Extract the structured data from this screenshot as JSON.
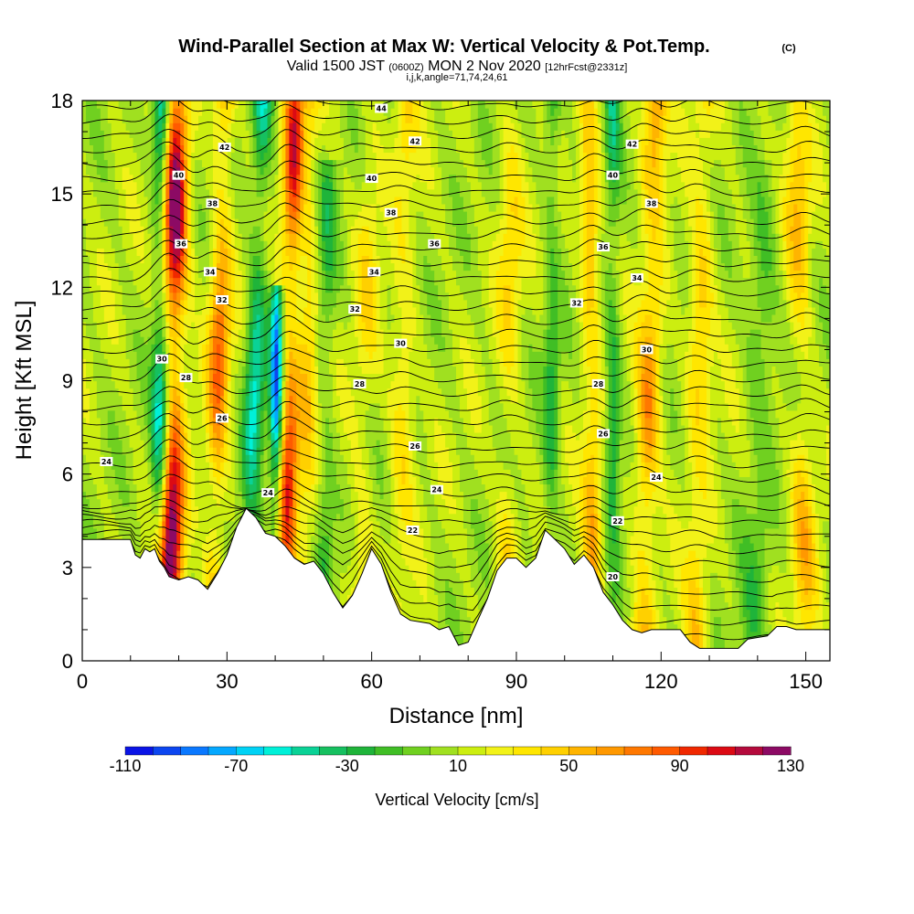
{
  "chart_data": {
    "type": "heatmap",
    "title": "Wind-Parallel Section at Max W: Vertical Velocity & Pot.Temp.",
    "title_mark": "(C)",
    "subtitle_parts": [
      "Valid 1500 JST",
      "(0600Z)",
      "MON 2 Nov 2020",
      "[12hrFcst@2331z]"
    ],
    "subtitle2": "i,j,k,angle=71,74,24,61",
    "xlabel": "Distance [nm]",
    "ylabel": "Height [Kft MSL]",
    "xlim": [
      0,
      155
    ],
    "ylim": [
      0,
      18
    ],
    "x_ticks": [
      "0",
      "30",
      "60",
      "90",
      "120",
      "150"
    ],
    "y_ticks": [
      "0",
      "3",
      "6",
      "9",
      "12",
      "15",
      "18"
    ],
    "colorbar": {
      "label": "Vertical Velocity [cm/s]",
      "range": [
        -110,
        130
      ],
      "step": 10,
      "tick_labels": [
        "-110",
        "-70",
        "-30",
        "10",
        "50",
        "90",
        "130"
      ],
      "colors": [
        "#0a14e6",
        "#0c46f0",
        "#0a78ff",
        "#05a8ff",
        "#00d2f5",
        "#00f0d8",
        "#0ad296",
        "#16c060",
        "#1fb43a",
        "#40be25",
        "#70d020",
        "#a0e020",
        "#ccee10",
        "#f2f218",
        "#ffe600",
        "#ffd000",
        "#ffb400",
        "#ff9800",
        "#ff7800",
        "#ff5a00",
        "#f02800",
        "#dc0a14",
        "#b40a3c",
        "#8c0a64"
      ]
    },
    "contour_field": "Pot.Temp.",
    "contour_labels": [
      {
        "text": "44",
        "x": 62,
        "y": 17.75
      },
      {
        "text": "42",
        "x": 29.5,
        "y": 16.5
      },
      {
        "text": "42",
        "x": 69,
        "y": 16.7
      },
      {
        "text": "42",
        "x": 114,
        "y": 16.6
      },
      {
        "text": "40",
        "x": 20,
        "y": 15.6
      },
      {
        "text": "40",
        "x": 60,
        "y": 15.5
      },
      {
        "text": "40",
        "x": 110,
        "y": 15.6
      },
      {
        "text": "38",
        "x": 27,
        "y": 14.7
      },
      {
        "text": "38",
        "x": 64,
        "y": 14.4
      },
      {
        "text": "38",
        "x": 118,
        "y": 14.7
      },
      {
        "text": "36",
        "x": 20.5,
        "y": 13.4
      },
      {
        "text": "36",
        "x": 73,
        "y": 13.4
      },
      {
        "text": "36",
        "x": 108,
        "y": 13.3
      },
      {
        "text": "34",
        "x": 26.5,
        "y": 12.5
      },
      {
        "text": "34",
        "x": 60.5,
        "y": 12.5
      },
      {
        "text": "34",
        "x": 115,
        "y": 12.3
      },
      {
        "text": "32",
        "x": 29,
        "y": 11.6
      },
      {
        "text": "32",
        "x": 56.5,
        "y": 11.3
      },
      {
        "text": "32",
        "x": 102.5,
        "y": 11.5
      },
      {
        "text": "30",
        "x": 16.5,
        "y": 9.7
      },
      {
        "text": "30",
        "x": 66,
        "y": 10.2
      },
      {
        "text": "30",
        "x": 117,
        "y": 10.0
      },
      {
        "text": "28",
        "x": 21.5,
        "y": 9.1
      },
      {
        "text": "28",
        "x": 57.5,
        "y": 8.9
      },
      {
        "text": "28",
        "x": 107,
        "y": 8.9
      },
      {
        "text": "26",
        "x": 29,
        "y": 7.8
      },
      {
        "text": "26",
        "x": 69,
        "y": 6.9
      },
      {
        "text": "26",
        "x": 108,
        "y": 7.3
      },
      {
        "text": "24",
        "x": 5,
        "y": 6.4
      },
      {
        "text": "24",
        "x": 38.5,
        "y": 5.4
      },
      {
        "text": "24",
        "x": 73.5,
        "y": 5.5
      },
      {
        "text": "24",
        "x": 119,
        "y": 5.9
      },
      {
        "text": "22",
        "x": 68.5,
        "y": 4.2
      },
      {
        "text": "22",
        "x": 111,
        "y": 4.5
      },
      {
        "text": "20",
        "x": 110,
        "y": 2.7
      }
    ],
    "updraft_columns": [
      {
        "x": 18,
        "w": 2.6,
        "amp": 130,
        "top": 18,
        "tilt": 1.5
      },
      {
        "x": 27,
        "w": 2.2,
        "amp": 70,
        "top": 18,
        "tilt": 2.5
      },
      {
        "x": 42,
        "w": 2.0,
        "amp": 90,
        "top": 18,
        "tilt": 2.0
      },
      {
        "x": 46,
        "w": 2.2,
        "amp": 40,
        "top": 18,
        "tilt": 1.5
      },
      {
        "x": 57,
        "w": 2.5,
        "amp": 25,
        "top": 18,
        "tilt": 3.0
      },
      {
        "x": 66,
        "w": 2.5,
        "amp": 30,
        "top": 18,
        "tilt": 1.0
      },
      {
        "x": 88,
        "w": 2.5,
        "amp": 30,
        "top": 18,
        "tilt": 1.0
      },
      {
        "x": 106,
        "w": 2.0,
        "amp": 50,
        "top": 18,
        "tilt": -1.0
      },
      {
        "x": 116,
        "w": 2.5,
        "amp": 60,
        "top": 18,
        "tilt": 3.0
      },
      {
        "x": 127,
        "w": 2.5,
        "amp": 40,
        "top": 18,
        "tilt": 2.0
      },
      {
        "x": 150,
        "w": 2.5,
        "amp": 40,
        "top": 18,
        "tilt": -2.0
      }
    ],
    "downdraft_columns": [
      {
        "x": 16,
        "w": 1.8,
        "amp": -80,
        "top": 18,
        "tilt": 0.5
      },
      {
        "x": 34,
        "w": 2.0,
        "amp": -65,
        "top": 18,
        "tilt": 3.5
      },
      {
        "x": 40,
        "w": 1.3,
        "amp": -100,
        "top": 12,
        "tilt": 0.5
      },
      {
        "x": 50,
        "w": 2.0,
        "amp": -30,
        "top": 16,
        "tilt": 1.0
      },
      {
        "x": 97,
        "w": 1.6,
        "amp": -35,
        "top": 18,
        "tilt": 0.5
      },
      {
        "x": 110,
        "w": 1.5,
        "amp": -45,
        "top": 18,
        "tilt": 0.0
      },
      {
        "x": 139,
        "w": 3.0,
        "amp": -25,
        "top": 16,
        "tilt": 3.0
      }
    ],
    "terrain": [
      [
        0,
        3.9
      ],
      [
        10,
        3.9
      ],
      [
        11,
        3.4
      ],
      [
        12,
        3.3
      ],
      [
        13,
        3.6
      ],
      [
        14,
        3.5
      ],
      [
        15,
        3.6
      ],
      [
        16,
        3.2
      ],
      [
        17,
        3.0
      ],
      [
        18,
        2.7
      ],
      [
        20,
        2.6
      ],
      [
        22,
        2.7
      ],
      [
        24,
        2.6
      ],
      [
        26,
        2.3
      ],
      [
        28,
        2.8
      ],
      [
        30,
        3.4
      ],
      [
        32,
        4.3
      ],
      [
        34,
        4.9
      ],
      [
        36,
        4.6
      ],
      [
        38,
        4.1
      ],
      [
        40,
        4.0
      ],
      [
        42,
        3.7
      ],
      [
        44,
        3.3
      ],
      [
        46,
        3.1
      ],
      [
        48,
        3.2
      ],
      [
        50,
        2.8
      ],
      [
        52,
        2.2
      ],
      [
        54,
        1.7
      ],
      [
        56,
        2.1
      ],
      [
        58,
        2.8
      ],
      [
        60,
        3.6
      ],
      [
        62,
        3.1
      ],
      [
        64,
        2.2
      ],
      [
        66,
        1.5
      ],
      [
        68,
        1.3
      ],
      [
        72,
        1.2
      ],
      [
        74,
        1.0
      ],
      [
        76,
        1.1
      ],
      [
        78,
        0.5
      ],
      [
        80,
        0.6
      ],
      [
        82,
        1.3
      ],
      [
        84,
        2.0
      ],
      [
        86,
        2.9
      ],
      [
        88,
        3.3
      ],
      [
        90,
        3.3
      ],
      [
        92,
        3.0
      ],
      [
        94,
        3.3
      ],
      [
        96,
        4.2
      ],
      [
        98,
        3.9
      ],
      [
        100,
        3.6
      ],
      [
        102,
        3.1
      ],
      [
        104,
        3.4
      ],
      [
        106,
        3.0
      ],
      [
        108,
        2.2
      ],
      [
        110,
        1.8
      ],
      [
        112,
        1.3
      ],
      [
        114,
        1.0
      ],
      [
        116,
        0.9
      ],
      [
        118,
        1.0
      ],
      [
        124,
        1.0
      ],
      [
        126,
        0.6
      ],
      [
        128,
        0.4
      ],
      [
        132,
        0.4
      ],
      [
        136,
        0.4
      ],
      [
        138,
        0.7
      ],
      [
        142,
        0.8
      ],
      [
        144,
        1.1
      ],
      [
        146,
        1.1
      ],
      [
        148,
        1.0
      ],
      [
        155,
        1.0
      ]
    ]
  }
}
